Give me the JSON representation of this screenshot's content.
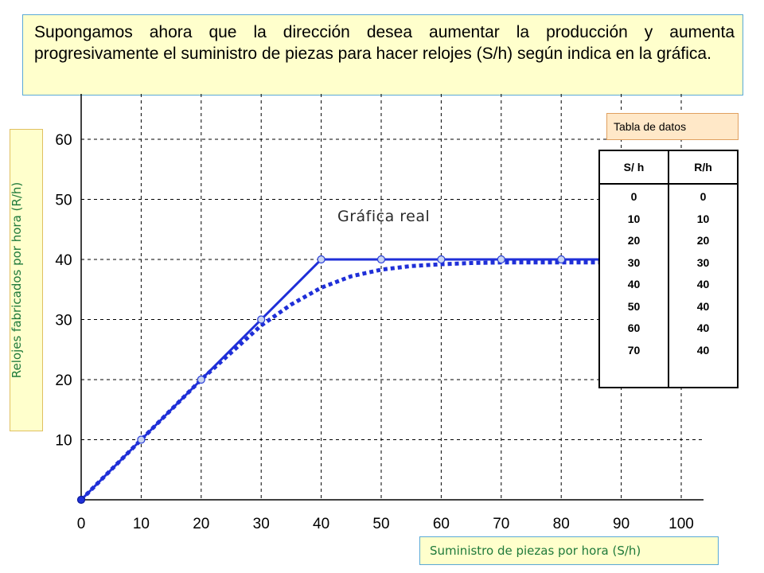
{
  "intro_text": "Supongamos ahora que la dirección desea aumentar la producción y aumenta progresivamente el suministro de piezas para hacer relojes (S/h) según indica en la gráfica.",
  "chart_data": {
    "type": "line",
    "xlabel": "Suministro de piezas por hora (S/h)",
    "ylabel": "Relojes fabricados por hora (R/h)",
    "xlim": [
      0,
      100
    ],
    "ylim": [
      0,
      65
    ],
    "x_ticks": [
      "0",
      "10",
      "20",
      "30",
      "40",
      "50",
      "60",
      "70",
      "80",
      "90",
      "100"
    ],
    "y_ticks": [
      "10",
      "20",
      "30",
      "40",
      "50",
      "60"
    ],
    "grid": true,
    "annotation": "Gráfica real",
    "series": [
      {
        "style": "solid-with-markers",
        "color": "#1f2fd8",
        "x": [
          0,
          10,
          20,
          30,
          40,
          50,
          60,
          70,
          80,
          90
        ],
        "y": [
          0,
          10,
          20,
          30,
          40,
          40,
          40,
          40,
          40,
          40
        ]
      },
      {
        "style": "dotted",
        "color": "#1f2fd8",
        "x": [
          0,
          10,
          20,
          30,
          35,
          40,
          45,
          50,
          55,
          60,
          65,
          70,
          80,
          90
        ],
        "y": [
          0,
          10,
          20,
          29,
          32.5,
          35.3,
          37.2,
          38.3,
          38.9,
          39.2,
          39.4,
          39.5,
          39.5,
          39.5
        ]
      }
    ]
  },
  "table": {
    "title": "Tabla de datos",
    "headers": [
      "S/ h",
      "R/h"
    ],
    "s_values": [
      "0",
      "10",
      "20",
      "30",
      "40",
      "50",
      "60",
      "70"
    ],
    "r_values": [
      "0",
      "10",
      "20",
      "30",
      "40",
      "40",
      "40",
      "40"
    ]
  }
}
